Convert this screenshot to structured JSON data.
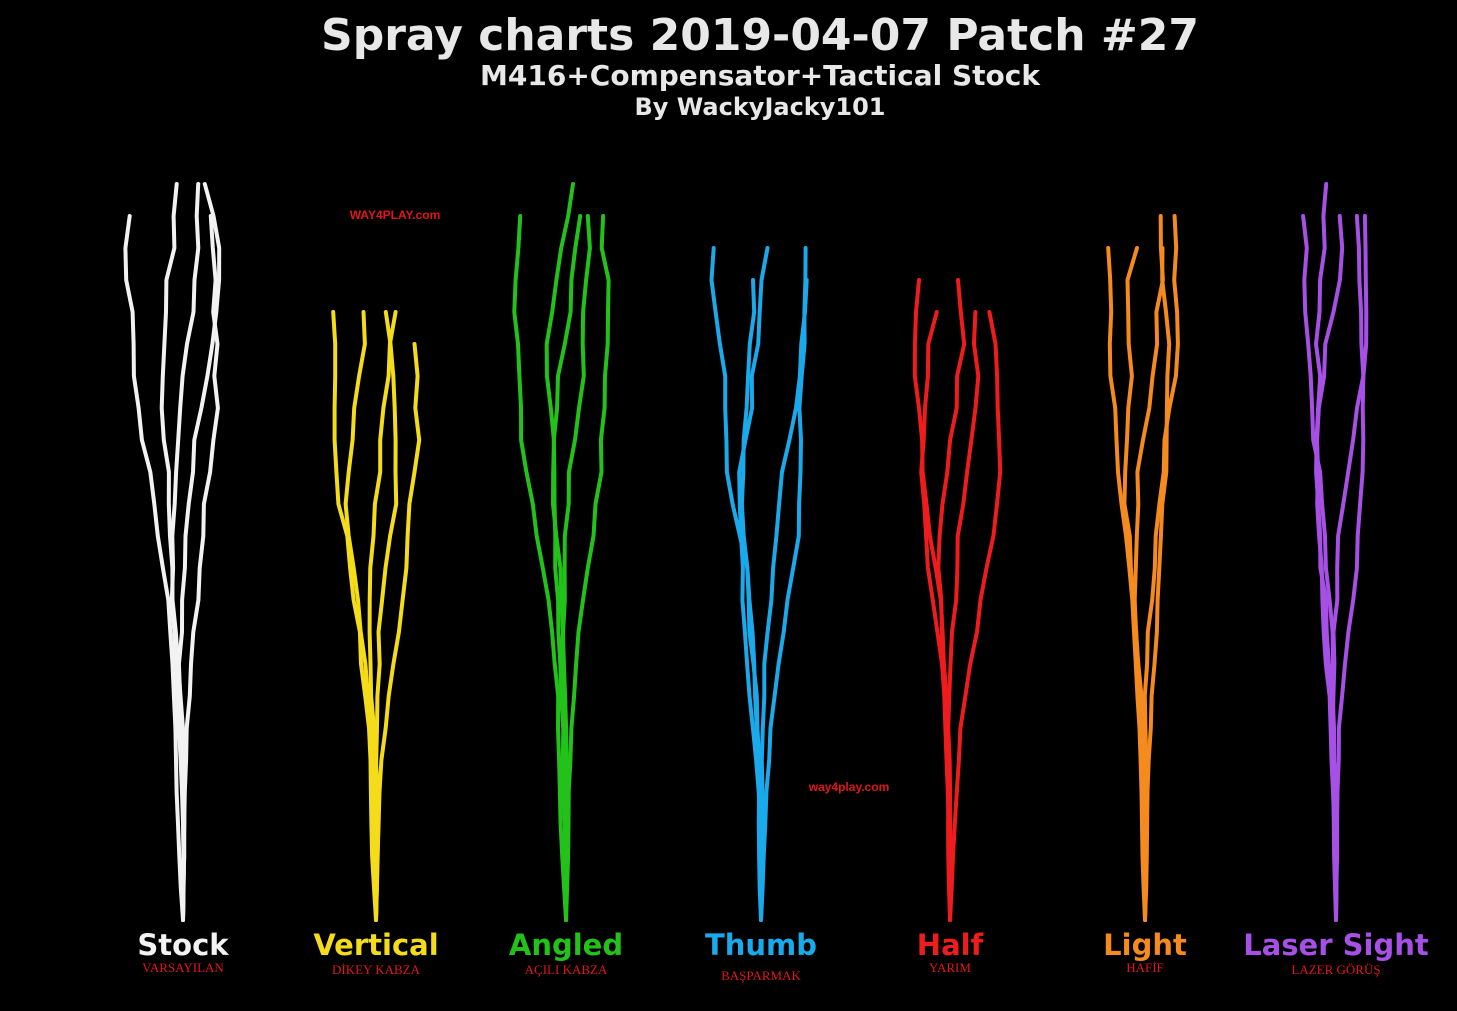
{
  "header": {
    "title": "Spray charts 2019-04-07 Patch #27",
    "subtitle": "M416+Compensator+Tactical Stock",
    "author": "By WackyJacky101"
  },
  "watermarks": [
    "WAY4PLAY.com",
    "way4play.com"
  ],
  "groups": [
    {
      "name": "Stock",
      "translation": "VARSAYILAN"
    },
    {
      "name": "Vertical",
      "translation": "DİKEY KABZA"
    },
    {
      "name": "Angled",
      "translation": "AÇILI KABZA"
    },
    {
      "name": "Thumb",
      "translation": "BAŞPARMAK"
    },
    {
      "name": "Half",
      "translation": "YARIM"
    },
    {
      "name": "Light",
      "translation": "HAFİF"
    },
    {
      "name": "Laser Sight",
      "translation": "LAZER GÖRÜŞ"
    }
  ]
}
